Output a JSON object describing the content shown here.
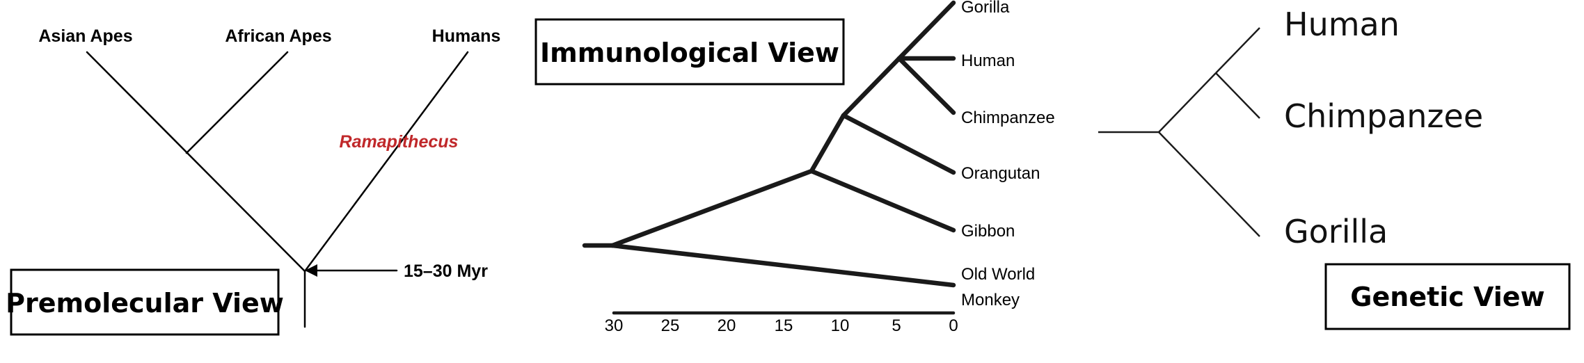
{
  "premolecular": {
    "title": "Premolecular View",
    "taxa": [
      "Asian Apes",
      "African Apes",
      "Humans"
    ],
    "highlight_label": "Ramapithecus",
    "highlight_color": "#c0282a",
    "divergence_label": "15–30 Myr"
  },
  "immunological": {
    "title": "Immunological View",
    "taxa": [
      "Gorilla",
      "Human",
      "Chimpanzee",
      "Orangutan",
      "Gibbon",
      "Old World",
      "Monkey"
    ],
    "axis_ticks": [
      "30",
      "25",
      "20",
      "15",
      "10",
      "5",
      "0"
    ]
  },
  "genetic": {
    "title": "Genetic View",
    "taxa": [
      "Human",
      "Chimpanzee",
      "Gorilla"
    ]
  }
}
